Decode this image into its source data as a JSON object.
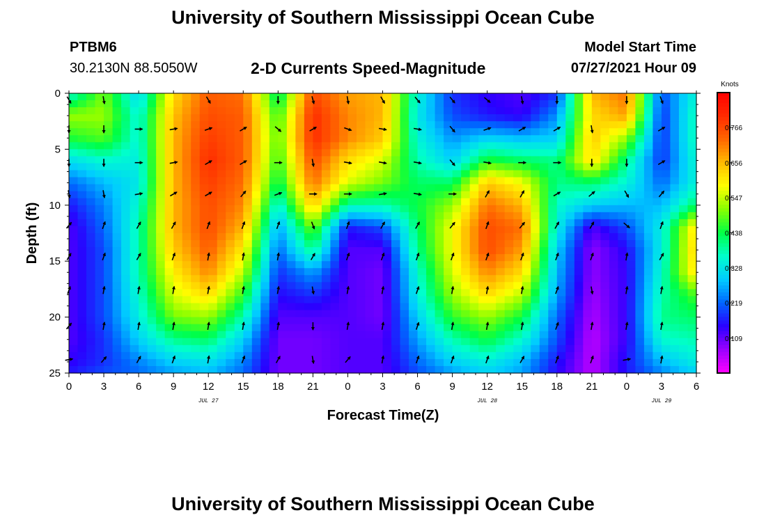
{
  "header": {
    "title": "University of Southern Mississippi Ocean Cube",
    "station_id": "PTBM6",
    "location": "30.2130N  88.5050W",
    "plot_title": "2-D Currents Speed-Magnitude",
    "model_label": "Model Start Time",
    "model_time": "07/27/2021 Hour 09"
  },
  "footer": {
    "title": "University of Southern Mississippi Ocean Cube"
  },
  "chart_data": {
    "type": "heatmap",
    "title": "2-D Currents Speed-Magnitude",
    "xlabel": "Forecast Time(Z)",
    "ylabel": "Depth (ft)",
    "x_tick_labels": [
      "0",
      "3",
      "6",
      "9",
      "12",
      "15",
      "18",
      "21",
      "0",
      "3",
      "6",
      "9",
      "12",
      "15",
      "18",
      "21",
      "0",
      "3",
      "6"
    ],
    "x_hours_from_start": [
      0,
      3,
      6,
      9,
      12,
      15,
      18,
      21,
      24,
      27,
      30,
      33,
      36,
      39,
      42,
      45,
      48,
      51,
      54
    ],
    "xlim": [
      0,
      54
    ],
    "date_labels": [
      {
        "label": "JUL 27",
        "hour": 12
      },
      {
        "label": "JUL 28",
        "hour": 36
      },
      {
        "label": "JUL 29",
        "hour": 51
      }
    ],
    "y_ticks": [
      0,
      5,
      10,
      15,
      20,
      25
    ],
    "ylim": [
      0,
      25
    ],
    "y_inverted": true,
    "colorbar": {
      "title": "Knots",
      "ticks": [
        "0.766",
        "0.656",
        "0.547",
        "0.438",
        "0.328",
        "0.219",
        "0.109"
      ],
      "tick_values": [
        0.766,
        0.656,
        0.547,
        0.438,
        0.328,
        0.219,
        0.109
      ],
      "range": [
        0.0,
        0.875
      ],
      "palette": [
        "#ff00ff",
        "#9a00ff",
        "#2a00ff",
        "#0066ff",
        "#00ccff",
        "#00ffcc",
        "#00ff44",
        "#88ff00",
        "#ffff00",
        "#ffbb00",
        "#ff6600",
        "#ff2a00",
        "#ff0000"
      ]
    },
    "speed_grid_depths_ft": [
      0,
      2,
      4,
      6,
      8,
      10,
      12,
      14,
      16,
      18,
      20,
      22,
      24,
      25
    ],
    "speed_grid_hours": [
      0,
      3,
      6,
      9,
      12,
      15,
      18,
      21,
      24,
      27,
      30,
      33,
      36,
      39,
      42,
      45,
      48,
      51,
      54
    ],
    "speed_grid_knots": [
      [
        0.35,
        0.5,
        0.3,
        0.62,
        0.74,
        0.72,
        0.4,
        0.76,
        0.68,
        0.66,
        0.35,
        0.18,
        0.14,
        0.12,
        0.18,
        0.66,
        0.72,
        0.2,
        0.35
      ],
      [
        0.52,
        0.52,
        0.35,
        0.65,
        0.76,
        0.74,
        0.46,
        0.8,
        0.7,
        0.66,
        0.33,
        0.2,
        0.16,
        0.14,
        0.25,
        0.62,
        0.68,
        0.18,
        0.38
      ],
      [
        0.45,
        0.48,
        0.35,
        0.66,
        0.78,
        0.74,
        0.48,
        0.8,
        0.7,
        0.64,
        0.35,
        0.25,
        0.3,
        0.28,
        0.3,
        0.64,
        0.52,
        0.18,
        0.38
      ],
      [
        0.32,
        0.36,
        0.34,
        0.66,
        0.8,
        0.74,
        0.46,
        0.76,
        0.62,
        0.56,
        0.38,
        0.3,
        0.45,
        0.42,
        0.4,
        0.62,
        0.4,
        0.18,
        0.36
      ],
      [
        0.22,
        0.28,
        0.33,
        0.66,
        0.78,
        0.72,
        0.42,
        0.72,
        0.56,
        0.5,
        0.42,
        0.42,
        0.64,
        0.58,
        0.4,
        0.42,
        0.35,
        0.22,
        0.35
      ],
      [
        0.16,
        0.24,
        0.36,
        0.66,
        0.76,
        0.7,
        0.34,
        0.64,
        0.38,
        0.38,
        0.44,
        0.52,
        0.72,
        0.66,
        0.36,
        0.3,
        0.28,
        0.28,
        0.42
      ],
      [
        0.12,
        0.22,
        0.38,
        0.66,
        0.76,
        0.66,
        0.26,
        0.5,
        0.16,
        0.2,
        0.42,
        0.58,
        0.76,
        0.72,
        0.34,
        0.12,
        0.2,
        0.34,
        0.62
      ],
      [
        0.12,
        0.2,
        0.38,
        0.64,
        0.74,
        0.6,
        0.22,
        0.4,
        0.12,
        0.12,
        0.4,
        0.58,
        0.76,
        0.68,
        0.3,
        0.08,
        0.15,
        0.34,
        0.64
      ],
      [
        0.12,
        0.2,
        0.38,
        0.6,
        0.7,
        0.54,
        0.18,
        0.26,
        0.12,
        0.1,
        0.36,
        0.56,
        0.7,
        0.62,
        0.28,
        0.08,
        0.14,
        0.36,
        0.62
      ],
      [
        0.12,
        0.2,
        0.36,
        0.56,
        0.62,
        0.46,
        0.15,
        0.18,
        0.12,
        0.1,
        0.34,
        0.52,
        0.62,
        0.54,
        0.26,
        0.07,
        0.14,
        0.38,
        0.48
      ],
      [
        0.12,
        0.2,
        0.34,
        0.5,
        0.52,
        0.38,
        0.12,
        0.12,
        0.12,
        0.1,
        0.3,
        0.46,
        0.52,
        0.44,
        0.22,
        0.06,
        0.14,
        0.4,
        0.42
      ],
      [
        0.12,
        0.18,
        0.3,
        0.4,
        0.42,
        0.3,
        0.1,
        0.1,
        0.12,
        0.12,
        0.26,
        0.38,
        0.44,
        0.36,
        0.2,
        0.05,
        0.14,
        0.36,
        0.38
      ],
      [
        0.14,
        0.18,
        0.24,
        0.3,
        0.32,
        0.24,
        0.1,
        0.1,
        0.12,
        0.12,
        0.22,
        0.3,
        0.34,
        0.28,
        0.16,
        0.05,
        0.16,
        0.28,
        0.34
      ],
      [
        0.16,
        0.2,
        0.22,
        0.26,
        0.28,
        0.22,
        0.1,
        0.1,
        0.12,
        0.12,
        0.2,
        0.26,
        0.3,
        0.26,
        0.15,
        0.05,
        0.16,
        0.24,
        0.3
      ]
    ],
    "vector_hours": [
      0,
      3,
      6,
      9,
      12,
      15,
      18,
      21,
      24,
      27,
      30,
      33,
      36,
      39,
      42,
      45,
      48,
      51,
      54
    ],
    "vector_depths_ft": [
      0.6,
      3.2,
      6.2,
      9.0,
      11.8,
      14.6,
      17.6,
      20.8,
      23.8
    ],
    "vector_directions_deg": [
      [
        150,
        170,
        null,
        null,
        150,
        null,
        180,
        165,
        170,
        150,
        140,
        140,
        130,
        170,
        180,
        null,
        180,
        160,
        null
      ],
      [
        180,
        180,
        90,
        80,
        70,
        60,
        130,
        60,
        110,
        100,
        100,
        140,
        70,
        60,
        60,
        170,
        null,
        60,
        null
      ],
      [
        180,
        180,
        90,
        80,
        60,
        60,
        90,
        170,
        100,
        100,
        100,
        140,
        100,
        90,
        90,
        180,
        180,
        60,
        null
      ],
      [
        170,
        170,
        80,
        60,
        60,
        40,
        70,
        90,
        90,
        80,
        100,
        90,
        30,
        30,
        60,
        50,
        150,
        40,
        null
      ],
      [
        40,
        20,
        30,
        30,
        20,
        20,
        20,
        160,
        20,
        30,
        30,
        40,
        20,
        40,
        30,
        30,
        130,
        20,
        null
      ],
      [
        30,
        20,
        30,
        20,
        10,
        10,
        10,
        30,
        20,
        20,
        20,
        20,
        20,
        20,
        20,
        20,
        10,
        30,
        null
      ],
      [
        20,
        10,
        10,
        10,
        10,
        10,
        10,
        170,
        10,
        10,
        20,
        10,
        10,
        10,
        20,
        170,
        10,
        10,
        null
      ],
      [
        40,
        10,
        10,
        10,
        10,
        10,
        10,
        180,
        10,
        10,
        20,
        10,
        10,
        10,
        20,
        10,
        10,
        10,
        null
      ],
      [
        80,
        40,
        30,
        20,
        10,
        20,
        30,
        170,
        40,
        10,
        20,
        20,
        20,
        30,
        20,
        20,
        80,
        10,
        null
      ]
    ]
  }
}
